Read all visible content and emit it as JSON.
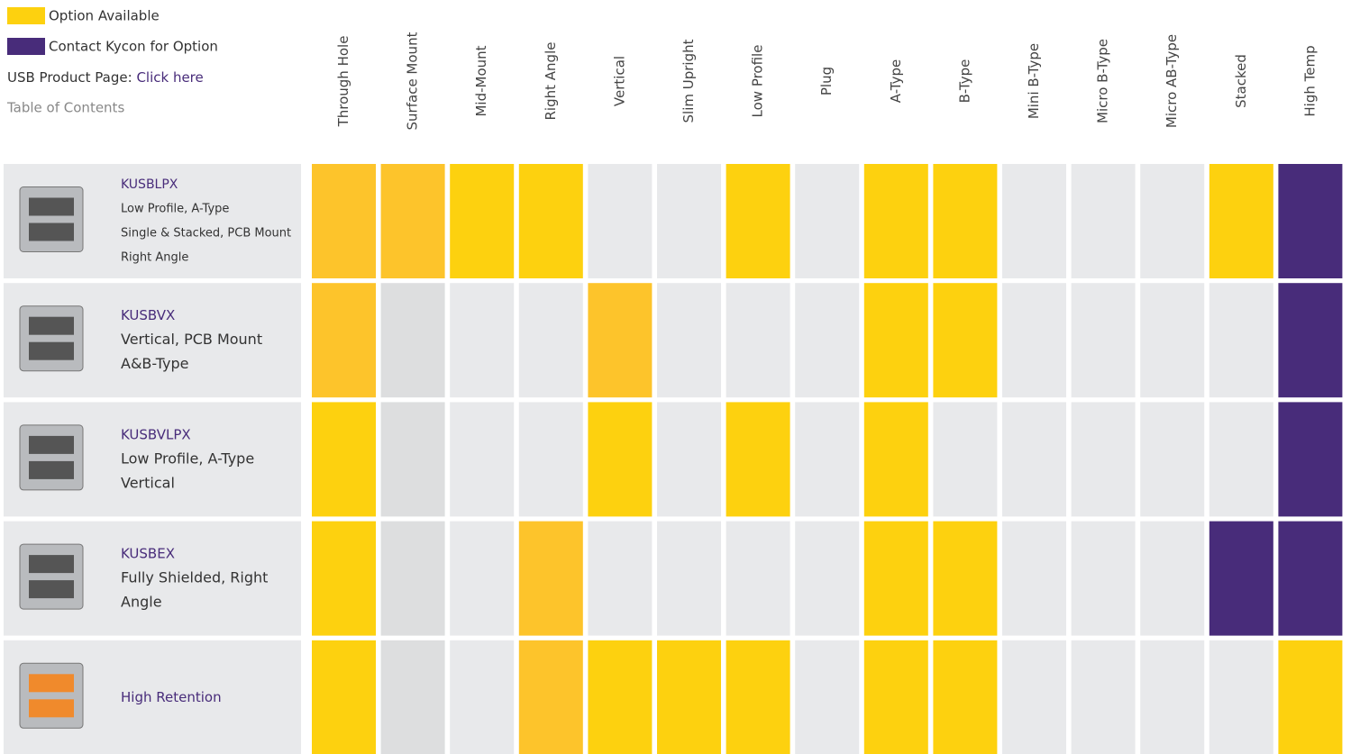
{
  "legend": [
    {
      "label": "Option Available",
      "color": "#fdd10f"
    },
    {
      "label": "Contact Kycon for Option",
      "color": "#482c7a"
    }
  ],
  "product_page": {
    "label": "USB Product Page:",
    "link": "Click here"
  },
  "toc": "Table of Contents",
  "columns": [
    "Through Hole",
    "Surface Mount",
    "Mid-Mount",
    "Right Angle",
    "Vertical",
    "Slim Upright",
    "Low Profile",
    "Plug",
    "A-Type",
    "B-Type",
    "Mini B-Type",
    "Micro B-Type",
    "Micro AB-Type",
    "Stacked",
    "High Temp"
  ],
  "rows": [
    {
      "name": "KUSBLPX",
      "description": [
        "Low Profile, A-Type",
        "Single & Stacked, PCB Mount",
        "Right Angle"
      ],
      "cells": [
        "#fdc42b",
        "#fdc42b",
        "#fdd10f",
        "#fdd10f",
        "#e8e9eb",
        "#e8e9eb",
        "#fdd10f",
        "#e8e9eb",
        "#fdd10f",
        "#fdd10f",
        "#e8e9eb",
        "#e8e9eb",
        "#e8e9eb",
        "#fdd10f",
        "#482c7a"
      ]
    },
    {
      "name": "KUSBVX",
      "description": [
        "Vertical, PCB Mount",
        "A&B-Type"
      ],
      "cells": [
        "#fdc42b",
        "#dddedf",
        "#e8e9eb",
        "#e8e9eb",
        "#fdc42b",
        "#e8e9eb",
        "#e8e9eb",
        "#e8e9eb",
        "#fdd10f",
        "#fdd10f",
        "#e8e9eb",
        "#e8e9eb",
        "#e8e9eb",
        "#e8e9eb",
        "#482c7a"
      ]
    },
    {
      "name": "KUSBVLPX",
      "description": [
        "Low Profile, A-Type",
        "Vertical"
      ],
      "cells": [
        "#fdd10f",
        "#dddedf",
        "#e8e9eb",
        "#e8e9eb",
        "#fdd10f",
        "#e8e9eb",
        "#fdd10f",
        "#e8e9eb",
        "#fdd10f",
        "#e8e9eb",
        "#e8e9eb",
        "#e8e9eb",
        "#e8e9eb",
        "#e8e9eb",
        "#482c7a"
      ]
    },
    {
      "name": "KUSBEX",
      "description": [
        "Fully Shielded, Right",
        "Angle"
      ],
      "cells": [
        "#fdd10f",
        "#dddedf",
        "#e8e9eb",
        "#fdc42b",
        "#e8e9eb",
        "#e8e9eb",
        "#e8e9eb",
        "#e8e9eb",
        "#fdd10f",
        "#fdd10f",
        "#e8e9eb",
        "#e8e9eb",
        "#e8e9eb",
        "#482c7a",
        "#482c7a"
      ]
    },
    {
      "name": "High Retention",
      "cells": [
        "#fdd10f",
        "#dddedf",
        "#e8e9eb",
        "#fdc42b",
        "#fdd10f",
        "#fdd10f",
        "#fdd10f",
        "#e8e9eb",
        "#fdd10f",
        "#fdd10f",
        "#e8e9eb",
        "#e8e9eb",
        "#e8e9eb",
        "#e8e9eb",
        "#fdd10f"
      ]
    }
  ]
}
